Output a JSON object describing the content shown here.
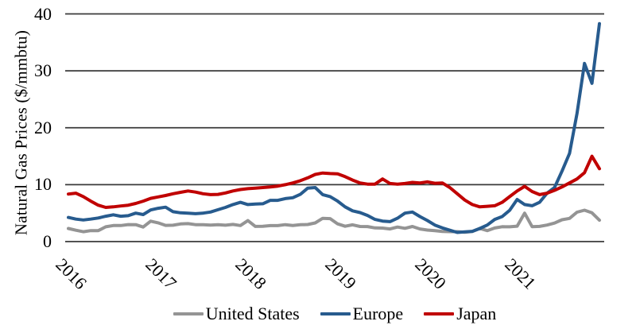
{
  "chart_data": {
    "type": "line",
    "title": "",
    "xlabel": "",
    "ylabel": "Natural Gas Prices ($/mmbtu)",
    "ylim": [
      0,
      40
    ],
    "yticks": [
      0,
      10,
      20,
      30,
      40
    ],
    "xtick_labels": [
      "2016",
      "2017",
      "2018",
      "2019",
      "2020",
      "2021"
    ],
    "x_frequency": "monthly",
    "x_start": "2016-01",
    "x_end": "2021-12",
    "grid": "horizontal-only",
    "legend_position": "bottom-center",
    "axis_color": "#3a3a3a",
    "series": [
      {
        "name": "United States",
        "color": "#949494",
        "values": [
          2.3,
          1.99,
          1.73,
          1.92,
          1.93,
          2.59,
          2.82,
          2.82,
          2.99,
          2.98,
          2.55,
          3.59,
          3.3,
          2.85,
          2.88,
          3.1,
          3.15,
          2.98,
          2.98,
          2.9,
          2.98,
          2.88,
          3.01,
          2.82,
          3.69,
          2.67,
          2.69,
          2.8,
          2.8,
          2.97,
          2.83,
          2.96,
          3.0,
          3.28,
          4.09,
          4.04,
          3.11,
          2.69,
          2.95,
          2.65,
          2.64,
          2.4,
          2.37,
          2.22,
          2.56,
          2.33,
          2.65,
          2.22,
          2.02,
          1.91,
          1.79,
          1.74,
          1.75,
          1.63,
          1.77,
          2.3,
          1.92,
          2.39,
          2.61,
          2.59,
          2.71,
          5.0,
          2.62,
          2.66,
          2.91,
          3.26,
          3.84,
          4.07,
          5.16,
          5.51,
          5.05,
          3.76
        ]
      },
      {
        "name": "Europe",
        "color": "#275B8E",
        "values": [
          4.25,
          3.95,
          3.8,
          3.95,
          4.15,
          4.45,
          4.7,
          4.45,
          4.55,
          5.0,
          4.75,
          5.55,
          5.85,
          6.05,
          5.25,
          5.05,
          5.0,
          4.9,
          5.0,
          5.2,
          5.6,
          6.0,
          6.5,
          6.9,
          6.5,
          6.6,
          6.65,
          7.25,
          7.25,
          7.55,
          7.7,
          8.3,
          9.4,
          9.5,
          8.25,
          7.9,
          7.1,
          6.1,
          5.4,
          5.1,
          4.6,
          3.9,
          3.6,
          3.5,
          4.1,
          5.0,
          5.2,
          4.4,
          3.7,
          2.9,
          2.4,
          2.0,
          1.6,
          1.7,
          1.8,
          2.3,
          2.9,
          3.9,
          4.4,
          5.5,
          7.4,
          6.5,
          6.3,
          6.9,
          8.5,
          9.5,
          12.4,
          15.5,
          22.5,
          31.3,
          27.8,
          38.3
        ]
      },
      {
        "name": "Japan",
        "color": "#C00000",
        "values": [
          8.35,
          8.5,
          7.9,
          7.1,
          6.4,
          6.0,
          6.1,
          6.25,
          6.4,
          6.7,
          7.1,
          7.6,
          7.85,
          8.1,
          8.4,
          8.65,
          8.9,
          8.7,
          8.4,
          8.25,
          8.3,
          8.55,
          8.9,
          9.15,
          9.3,
          9.4,
          9.5,
          9.6,
          9.75,
          10.0,
          10.3,
          10.7,
          11.2,
          11.8,
          12.05,
          11.95,
          11.9,
          11.4,
          10.8,
          10.3,
          10.1,
          10.1,
          11.0,
          10.2,
          10.1,
          10.2,
          10.4,
          10.3,
          10.5,
          10.25,
          10.3,
          9.5,
          8.4,
          7.3,
          6.5,
          6.1,
          6.2,
          6.3,
          6.9,
          7.9,
          8.9,
          9.7,
          8.8,
          8.25,
          8.5,
          9.0,
          9.6,
          10.3,
          11.0,
          12.1,
          15.0,
          12.8
        ]
      }
    ]
  }
}
